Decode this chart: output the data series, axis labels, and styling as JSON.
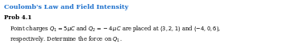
{
  "title": "Coulomb's Law and Field Intensity",
  "prob_label": "Prob 4.1",
  "line1": "Point charges $Q_1 = 5\\,\\mu C$ and $Q_2 = -4\\,\\mu C$ are placed at $(3, 2, 1)$ and $(-4, 0, 6)$,",
  "line2": "respectively. Determine the force on $Q_1$.",
  "title_color": "#1B6FCC",
  "text_color": "#000000",
  "bg_color": "#FFFFFF",
  "title_fontsize": 5.8,
  "prob_fontsize": 5.2,
  "body_fontsize": 4.9
}
